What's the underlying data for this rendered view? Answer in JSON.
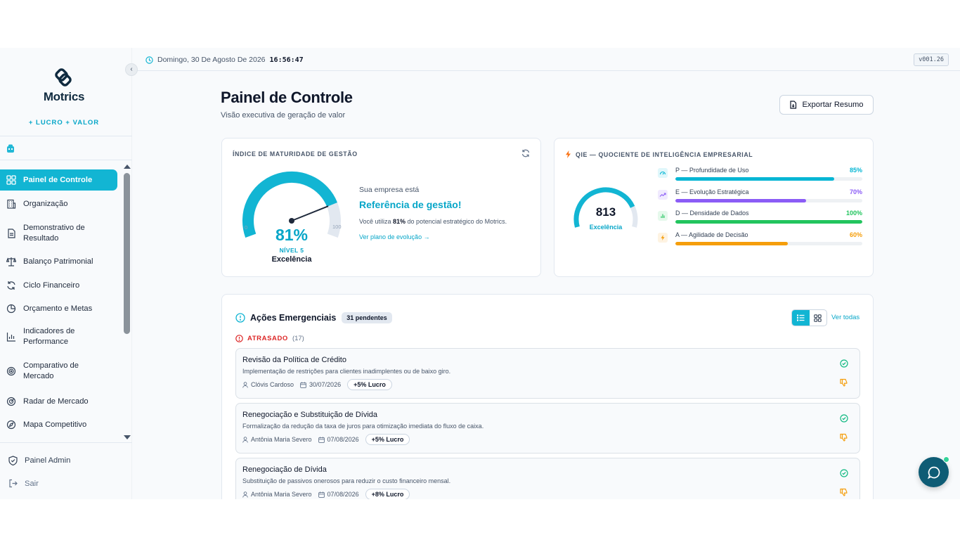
{
  "brand": {
    "name": "Motrics",
    "tagline": "+ LUCRO + VALOR"
  },
  "sidebar": {
    "items": [
      {
        "label": "Painel de Controle",
        "icon": "dashboard-icon",
        "active": true
      },
      {
        "label": "Organização",
        "icon": "building-icon"
      },
      {
        "label": "Demonstrativo de Resultado",
        "icon": "document-icon"
      },
      {
        "label": "Balanço Patrimonial",
        "icon": "scale-icon"
      },
      {
        "label": "Ciclo Financeiro",
        "icon": "cycle-icon"
      },
      {
        "label": "Orçamento e Metas",
        "icon": "pie-icon"
      },
      {
        "label": "Indicadores de Performance",
        "icon": "bar-chart-icon"
      },
      {
        "label": "Comparativo de Mercado",
        "icon": "target-icon"
      },
      {
        "label": "Radar de Mercado",
        "icon": "radar-icon"
      },
      {
        "label": "Mapa Competitivo",
        "icon": "compass-icon"
      }
    ],
    "admin_label": "Painel Admin",
    "logout_label": "Sair"
  },
  "topbar": {
    "date": "Domingo, 30 De Agosto De 2026",
    "time": "16:56:47",
    "version": "v001.26"
  },
  "header": {
    "title": "Painel de Controle",
    "subtitle": "Visão executiva de geração de valor",
    "export_label": "Exportar Resumo"
  },
  "imag": {
    "title": "ÍNDICE DE MATURIDADE DE GESTÃO",
    "value": 81,
    "value_label": "81%",
    "min_label": "0",
    "max_label": "100",
    "level": "NÍVEL 5",
    "level_name": "Excelência",
    "intro": "Sua empresa está",
    "headline": "Referência de gestão!",
    "desc_pre": "Você utiliza ",
    "desc_bold": "81%",
    "desc_post": " do potencial estratégico do Motrics.",
    "link": "Ver plano de evolução →"
  },
  "qie": {
    "title": "QIE — QUOCIENTE DE INTELIGÊNCIA EMPRESARIAL",
    "score": "813",
    "score_fraction": 0.81,
    "score_label": "Excelência",
    "metrics": [
      {
        "name": "P — Profundidade de Uso",
        "value": 85,
        "value_label": "85%",
        "color": "#06b6d4",
        "icon": "gauge-icon"
      },
      {
        "name": "E — Evolução Estratégica",
        "value": 70,
        "value_label": "70%",
        "color": "#8b5cf6",
        "icon": "trend-up-icon"
      },
      {
        "name": "D — Densidade de Dados",
        "value": 100,
        "value_label": "100%",
        "color": "#22c55e",
        "icon": "bar-chart-icon"
      },
      {
        "name": "A — Agilidade de Decisão",
        "value": 60,
        "value_label": "60%",
        "color": "#f59e0b",
        "icon": "lightning-icon"
      }
    ]
  },
  "acoes": {
    "title": "Ações Emergenciais",
    "pending": "31 pendentes",
    "view_all": "Ver todas",
    "late_label": "ATRASADO",
    "late_count": "(17)",
    "items": [
      {
        "title": "Revisão da Política de Crédito",
        "desc": "Implementação de restrições para clientes inadimplentes ou de baixo giro.",
        "owner": "Clóvis Cardoso",
        "date": "30/07/2026",
        "impact": "+5% Lucro"
      },
      {
        "title": "Renegociação e Substituição de Dívida",
        "desc": "Formalização da redução da taxa de juros para otimização imediata do fluxo de caixa.",
        "owner": "Antônia Maria Severo",
        "date": "07/08/2026",
        "impact": "+5% Lucro"
      },
      {
        "title": "Renegociação de Dívida",
        "desc": "Substituição de passivos onerosos para reduzir o custo financeiro mensal.",
        "owner": "Antônia Maria Severo",
        "date": "07/08/2026",
        "impact": "+8% Lucro"
      }
    ]
  },
  "colors": {
    "accent": "#12b5d3",
    "danger": "#dc2626",
    "warning": "#f59e0b",
    "success": "#10b981"
  }
}
